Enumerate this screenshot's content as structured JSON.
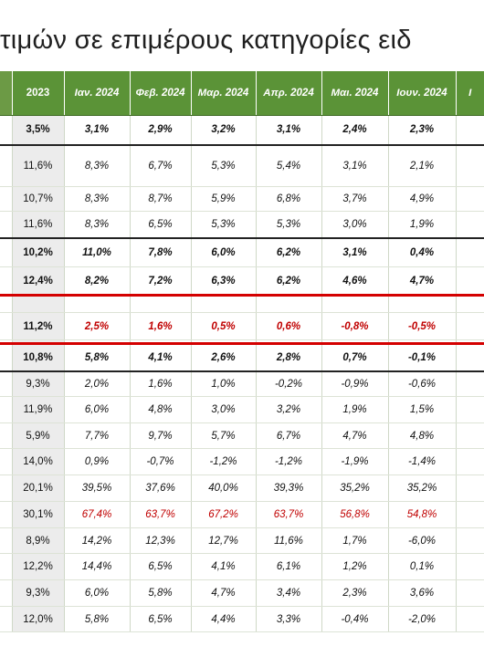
{
  "title": "τιμών σε επιμέρους κατηγορίες ειδ",
  "columns": [
    "",
    "2023",
    "Ιαν. 2024",
    "Φεβ. 2024",
    "Μαρ. 2024",
    "Απρ. 2024",
    "Μαι. 2024",
    "Ιουν. 2024",
    "Ι"
  ],
  "rows": [
    {
      "cells": [
        "",
        "3,5%",
        "3,1%",
        "2,9%",
        "3,2%",
        "3,1%",
        "2,4%",
        "2,3%",
        ""
      ],
      "bold": true,
      "thick": true,
      "red": false,
      "h": 32
    },
    {
      "cells": [
        "",
        "11,6%",
        "8,3%",
        "6,7%",
        "5,3%",
        "5,4%",
        "3,1%",
        "2,1%",
        ""
      ],
      "bold": false,
      "thick": false,
      "red": false,
      "h": 46
    },
    {
      "cells": [
        "",
        "10,7%",
        "8,3%",
        "8,7%",
        "5,9%",
        "6,8%",
        "3,7%",
        "4,9%",
        ""
      ],
      "bold": false,
      "thick": false,
      "red": false,
      "h": 27
    },
    {
      "cells": [
        "",
        "11,6%",
        "8,3%",
        "6,5%",
        "5,3%",
        "5,3%",
        "3,0%",
        "1,9%",
        ""
      ],
      "bold": false,
      "thick": true,
      "red": false,
      "h": 29
    },
    {
      "cells": [
        "",
        "10,2%",
        "11,0%",
        "7,8%",
        "6,0%",
        "6,2%",
        "3,1%",
        "0,4%",
        ""
      ],
      "bold": true,
      "thick": false,
      "red": false,
      "h": 32
    },
    {
      "cells": [
        "",
        "12,4%",
        "8,2%",
        "7,2%",
        "6,3%",
        "6,2%",
        "4,6%",
        "4,7%",
        ""
      ],
      "bold": true,
      "thick": false,
      "red": false,
      "h": 30
    },
    {
      "cells": [
        "",
        "",
        "",
        "",
        "",
        "",
        "",
        "",
        ""
      ],
      "bold": false,
      "thick": false,
      "red": false,
      "h": 20
    },
    {
      "cells": [
        "",
        "11,2%",
        "2,5%",
        "1,6%",
        "0,5%",
        "0,6%",
        "-0,8%",
        "-0,5%",
        ""
      ],
      "bold": true,
      "thick": false,
      "red": true,
      "h": 30
    },
    {
      "cells": [
        "",
        "",
        "",
        "",
        "",
        "",
        "",
        "",
        ""
      ],
      "bold": false,
      "thick": false,
      "red": false,
      "h": 5
    },
    {
      "cells": [
        "",
        "10,8%",
        "5,8%",
        "4,1%",
        "2,6%",
        "2,8%",
        "0,7%",
        "-0,1%",
        ""
      ],
      "bold": true,
      "thick": true,
      "red": false,
      "h": 29
    },
    {
      "cells": [
        "",
        "9,3%",
        "2,0%",
        "1,6%",
        "1,0%",
        "-0,2%",
        "-0,9%",
        "-0,6%",
        ""
      ],
      "bold": false,
      "thick": false,
      "red": false,
      "h": 28
    },
    {
      "cells": [
        "",
        "11,9%",
        "6,0%",
        "4,8%",
        "3,0%",
        "3,2%",
        "1,9%",
        "1,5%",
        ""
      ],
      "bold": false,
      "thick": false,
      "red": false,
      "h": 29
    },
    {
      "cells": [
        "",
        "5,9%",
        "7,7%",
        "9,7%",
        "5,7%",
        "6,7%",
        "4,7%",
        "4,8%",
        ""
      ],
      "bold": false,
      "thick": false,
      "red": false,
      "h": 28
    },
    {
      "cells": [
        "",
        "14,0%",
        "0,9%",
        "-0,7%",
        "-1,2%",
        "-1,2%",
        "-1,9%",
        "-1,4%",
        ""
      ],
      "bold": false,
      "thick": false,
      "red": false,
      "h": 29
    },
    {
      "cells": [
        "",
        "20,1%",
        "39,5%",
        "37,6%",
        "40,0%",
        "39,3%",
        "35,2%",
        "35,2%",
        ""
      ],
      "bold": false,
      "thick": false,
      "red": false,
      "h": 29
    },
    {
      "cells": [
        "",
        "30,1%",
        "67,4%",
        "63,7%",
        "67,2%",
        "63,7%",
        "56,8%",
        "54,8%",
        ""
      ],
      "bold": false,
      "thick": false,
      "red": true,
      "h": 29
    },
    {
      "cells": [
        "",
        "8,9%",
        "14,2%",
        "12,3%",
        "12,7%",
        "11,6%",
        "1,7%",
        "-6,0%",
        ""
      ],
      "bold": false,
      "thick": false,
      "red": false,
      "h": 28
    },
    {
      "cells": [
        "",
        "12,2%",
        "14,4%",
        "6,5%",
        "4,1%",
        "6,1%",
        "1,2%",
        "0,1%",
        ""
      ],
      "bold": false,
      "thick": false,
      "red": false,
      "h": 29
    },
    {
      "cells": [
        "",
        "9,3%",
        "6,0%",
        "5,8%",
        "4,7%",
        "3,4%",
        "2,3%",
        "3,6%",
        ""
      ],
      "bold": false,
      "thick": false,
      "red": false,
      "h": 29
    },
    {
      "cells": [
        "",
        "12,0%",
        "5,8%",
        "6,5%",
        "4,4%",
        "3,3%",
        "-0,4%",
        "-2,0%",
        ""
      ],
      "bold": false,
      "thick": false,
      "red": false,
      "h": 28
    }
  ],
  "colors": {
    "header_green": "#5b9337",
    "highlight_red": "#d40000",
    "negative_red": "#c00000"
  }
}
